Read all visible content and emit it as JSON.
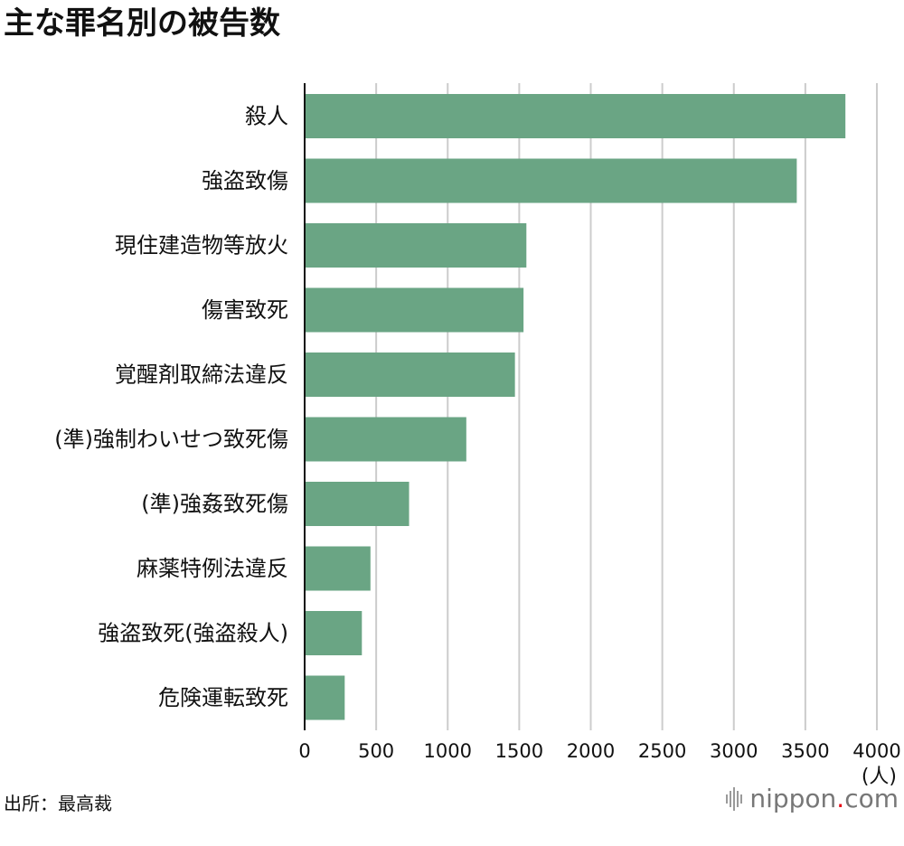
{
  "chart_data": {
    "type": "bar",
    "orientation": "horizontal",
    "title": "主な罪名別の被告数",
    "categories": [
      "殺人",
      "強盗致傷",
      "現住建造物等放火",
      "傷害致死",
      "覚醒剤取締法違反",
      "(準)強制わいせつ致死傷",
      "(準)強姦致死傷",
      "麻薬特例法違反",
      "強盗致死(強盗殺人)",
      "危険運転致死"
    ],
    "values": [
      3780,
      3440,
      1550,
      1530,
      1470,
      1130,
      730,
      460,
      400,
      280
    ],
    "xlim": [
      0,
      4000
    ],
    "xticks": [
      0,
      500,
      1000,
      1500,
      2000,
      2500,
      3000,
      3500,
      4000
    ],
    "xlabel": "(人)",
    "grid": true,
    "bar_color": "#6aa584",
    "grid_color": "#cccccc",
    "axis_color": "#111111"
  },
  "source": "出所：最高裁",
  "logo": {
    "name": "nippon",
    "dot": ".",
    "suffix": "com"
  }
}
